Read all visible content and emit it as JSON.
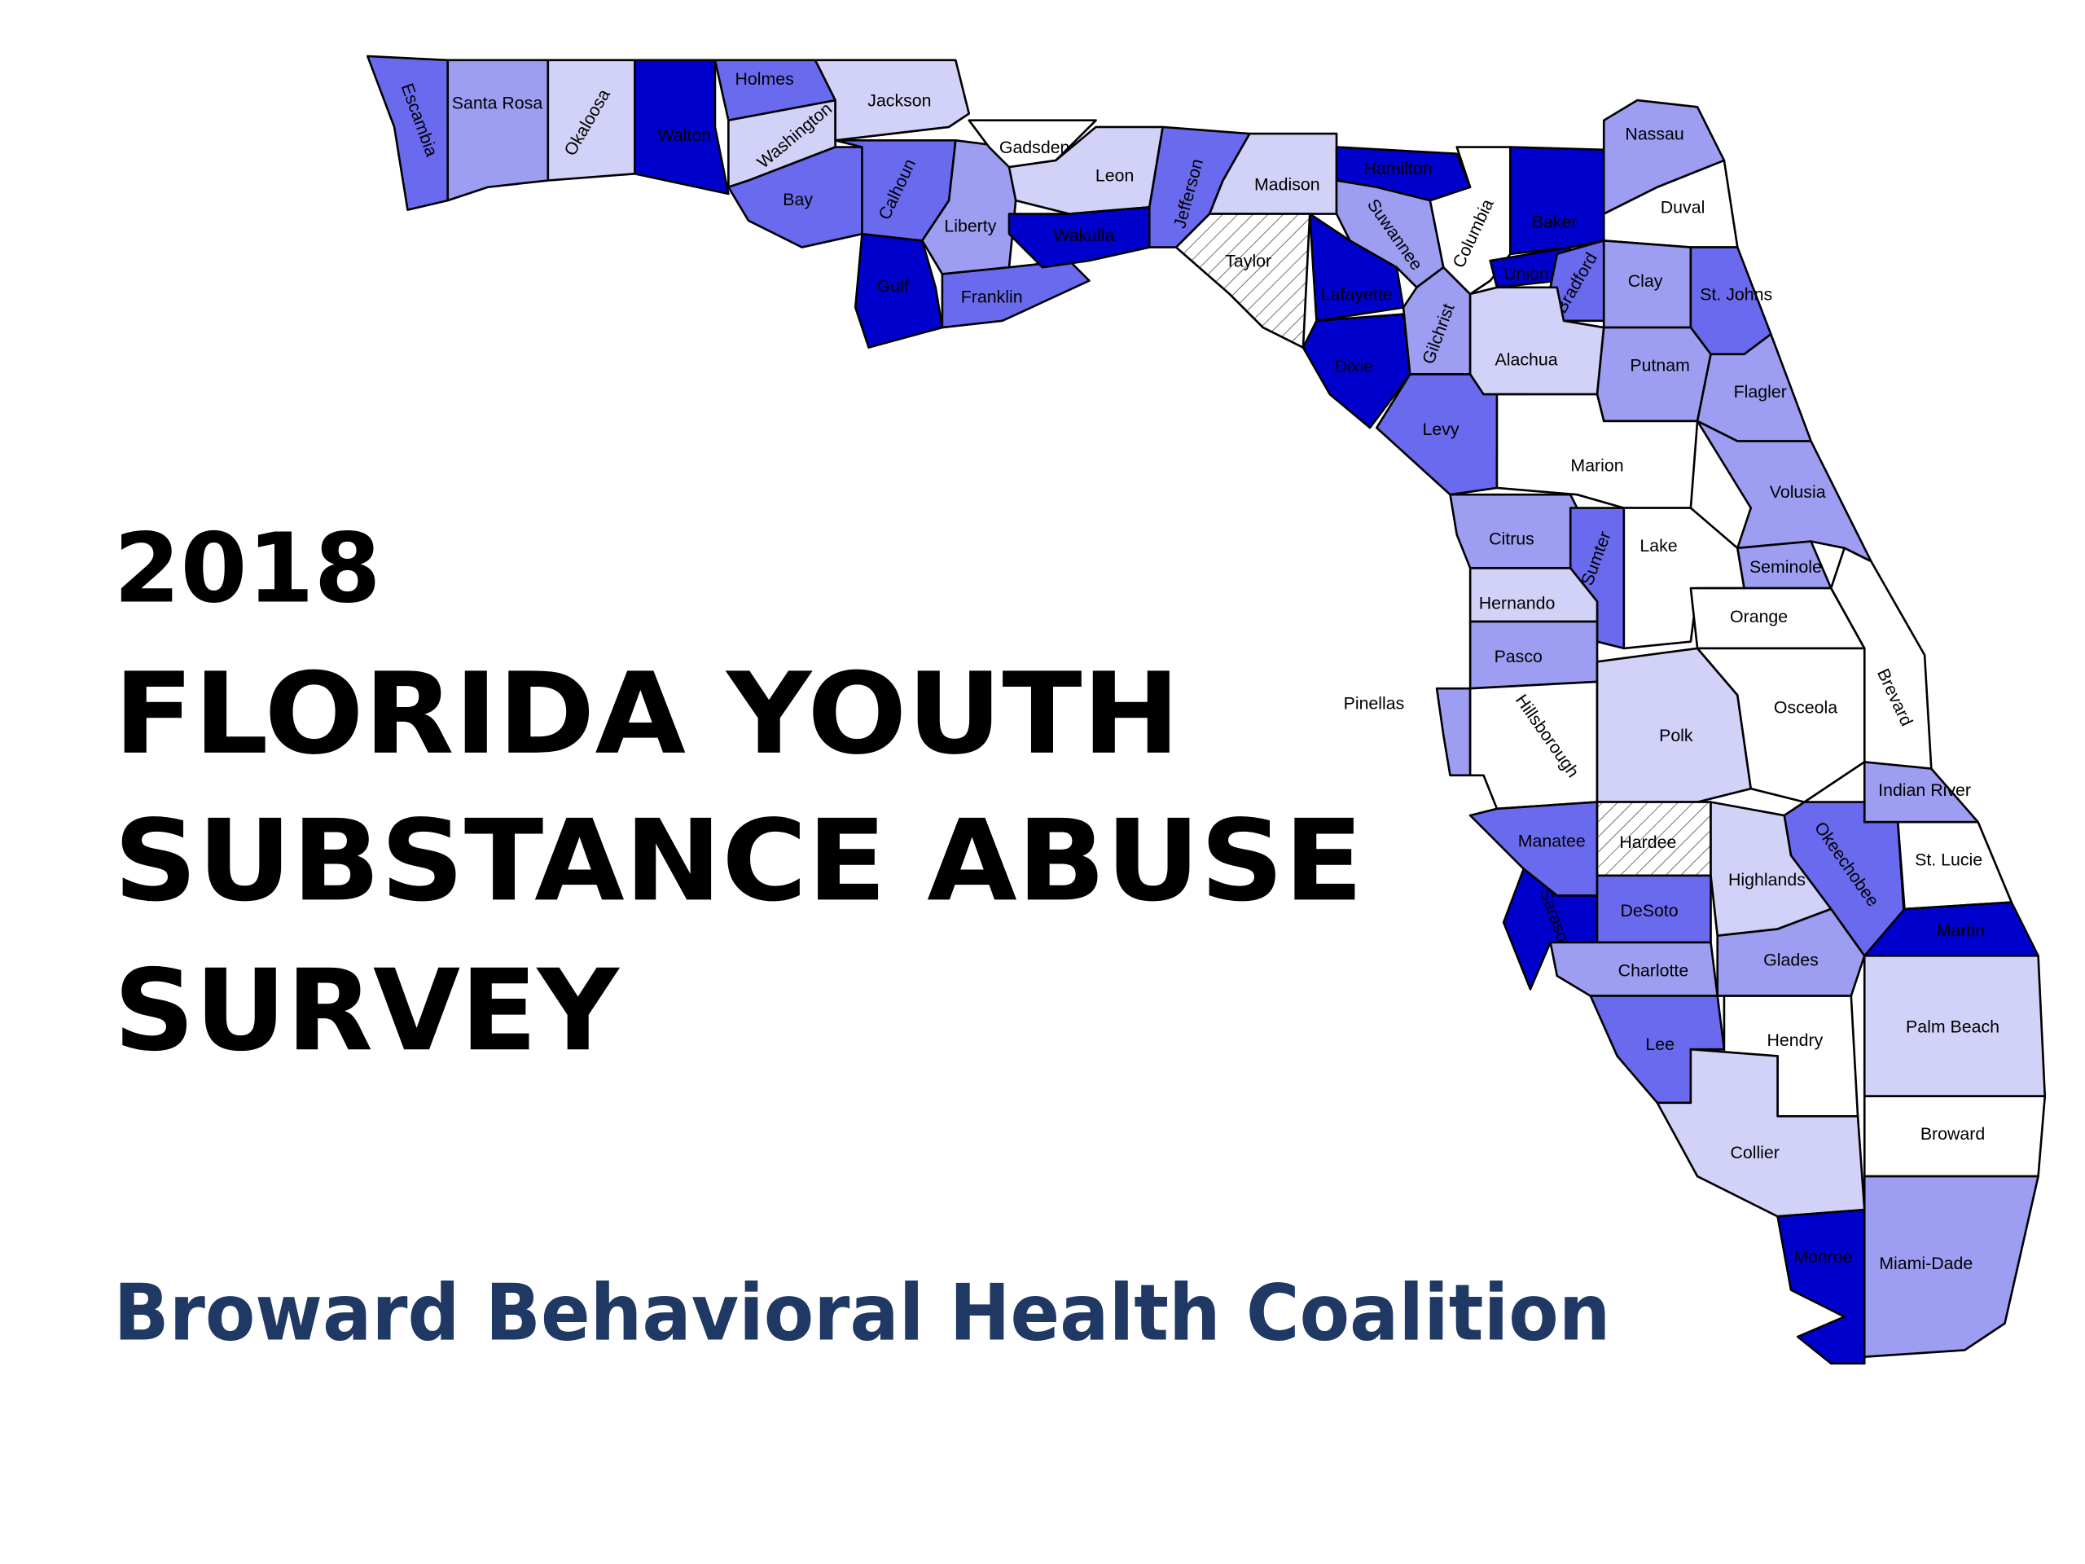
{
  "header": {
    "title_lines": [
      "2018",
      "FLORIDA YOUTH",
      "SUBSTANCE ABUSE",
      "SURVEY"
    ],
    "subtitle": "Broward Behavioral Health Coalition"
  },
  "map": {
    "counties": [
      "Escambia",
      "Santa Rosa",
      "Okaloosa",
      "Walton",
      "Holmes",
      "Washington",
      "Jackson",
      "Bay",
      "Gulf",
      "Calhoun",
      "Liberty",
      "Franklin",
      "Gadsden",
      "Leon",
      "Wakulla",
      "Jefferson",
      "Madison",
      "Taylor",
      "Hamilton",
      "Suwannee",
      "Lafayette",
      "Dixie",
      "Gilchrist",
      "Columbia",
      "Baker",
      "Union",
      "Bradford",
      "Nassau",
      "Duval",
      "Clay",
      "St. Johns",
      "Alachua",
      "Putnam",
      "Flagler",
      "Levy",
      "Marion",
      "Volusia",
      "Citrus",
      "Sumter",
      "Lake",
      "Seminole",
      "Hernando",
      "Orange",
      "Brevard",
      "Pasco",
      "Pinellas",
      "Hillsborough",
      "Polk",
      "Osceola",
      "Indian River",
      "Manatee",
      "Hardee",
      "Okeechobee",
      "Highlands",
      "St. Lucie",
      "Sarasota",
      "DeSoto",
      "Martin",
      "Charlotte",
      "Glades",
      "Lee",
      "Palm Beach",
      "Hendry",
      "Collier",
      "Broward",
      "Monroe",
      "Miami-Dade"
    ]
  }
}
